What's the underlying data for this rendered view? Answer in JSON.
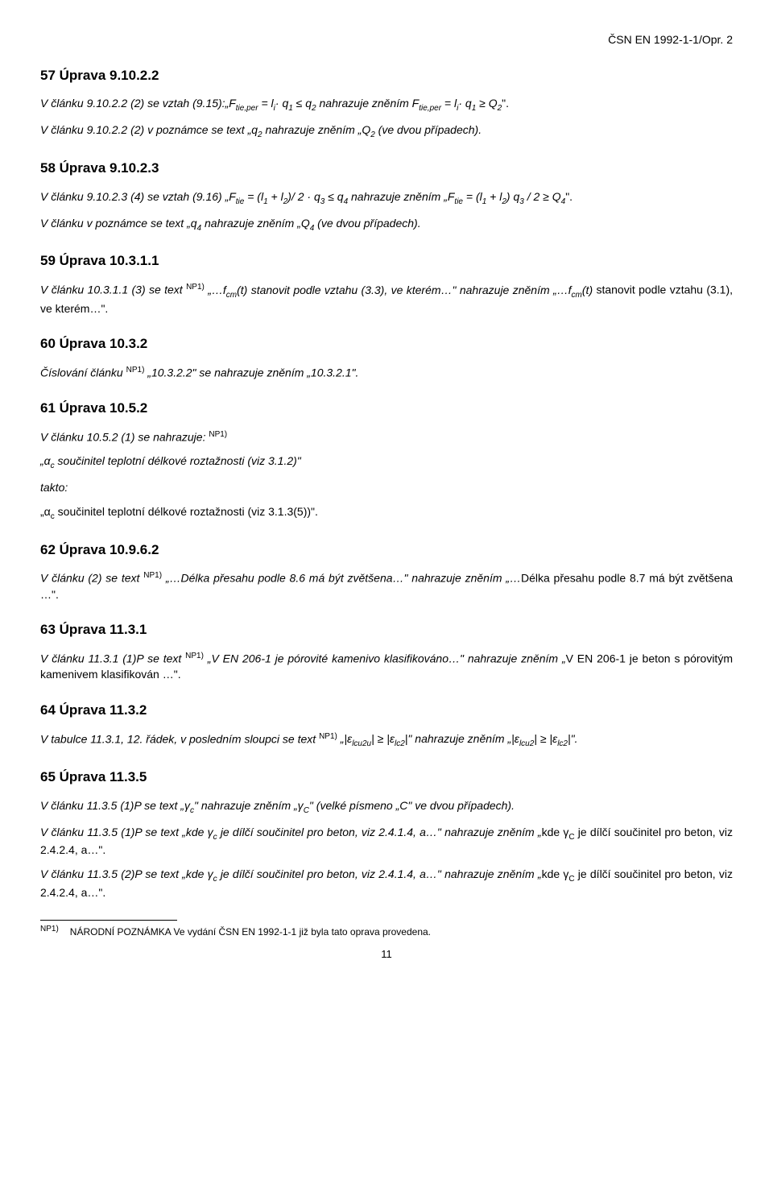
{
  "header": {
    "doc_ref": "ČSN EN 1992-1-1/Opr. 2"
  },
  "s57": {
    "heading": "57   Úprava 9.10.2.2",
    "p1_a": "V článku 9.10.2.2 (2) se vztah (9.15):„F",
    "p1_b": " = l",
    "p1_c": "· q",
    "p1_d": " ≤ q",
    "p1_e": " nahrazuje zněním F",
    "p1_f": " = l",
    "p1_g": "·  q",
    "p1_h": " ≥ Q",
    "p1_i": "\".",
    "p2_a": "V článku 9.10.2.2 (2) v poznámce se text „q",
    "p2_b": " nahrazuje zněním „Q",
    "p2_c": " (ve dvou případech)."
  },
  "s58": {
    "heading": "58   Úprava 9.10.2.3",
    "p1_a": "V článku 9.10.2.3 (4) se vztah (9.16) „F",
    "p1_b": " = (l",
    "p1_c": " + l",
    "p1_d": ")/ 2 · q",
    "p1_e": " ≤ q",
    "p1_f": " nahrazuje zněním „F",
    "p1_g": " = (l",
    "p1_h": " + l",
    "p1_i": ") q",
    "p1_j": " / 2 ≥ Q",
    "p1_k": "\".",
    "p2_a": "V článku v poznámce se text „q",
    "p2_b": " nahrazuje zněním „Q",
    "p2_c": " (ve dvou případech)."
  },
  "s59": {
    "heading": "59   Úprava 10.3.1.1",
    "p1_a": "V článku 10.3.1.1 (3) se text ",
    "np": "NP1)",
    "p1_b": " „…f",
    "p1_c": "(t) stanovit podle vztahu (3.3), ve kterém…\" nahrazuje zněním „…f",
    "p1_d": "(t)",
    "p1_e": " stanovit podle vztahu (3.1), ve kterém…\"."
  },
  "s60": {
    "heading": "60   Úprava 10.3.2",
    "p1_a": "Číslování článku ",
    "p1_b": " „10.3.2.2\" se nahrazuje zněním „10.3.2.1\"."
  },
  "s61": {
    "heading": "61   Úprava 10.5.2",
    "p1": "V článku 10.5.2 (1) se nahrazuje: ",
    "p2_a": "„α",
    "p2_b": " součinitel teplotní délkové roztažnosti (viz 3.1.2)\"",
    "p3": "takto:",
    "p4_a": "„α",
    "p4_b": " součinitel teplotní délkové roztažnosti (viz 3.1.3(5))\"."
  },
  "s62": {
    "heading": "62   Úprava 10.9.6.2",
    "p1_a": "V článku (2) se text ",
    "p1_b": " „…Délka přesahu podle 8.6 má být zvětšena…\" nahrazuje zněním „…",
    "p1_c": "Délka přesahu podle 8.7 má být zvětšena …\"."
  },
  "s63": {
    "heading": "63   Úprava 11.3.1",
    "p1_a": "V článku 11.3.1 (1)P se text ",
    "p1_b": " „V EN 206-1 je pórovité kamenivo klasifikováno…\" nahrazuje zněním „",
    "p1_c": "V EN 206-1 je beton s pórovitým kamenivem klasifikován …\"."
  },
  "s64": {
    "heading": "64   Úprava 11.3.2",
    "p1_a": "V tabulce 11.3.1, 12. řádek, v posledním sloupci se text ",
    "p1_b": " „|ε",
    "p1_c": "| ≥ |ε",
    "p1_d": "|\" nahrazuje zněním „|ε",
    "p1_e": "| ≥ |ε",
    "p1_f": "|\"."
  },
  "s65": {
    "heading": "65   Úprava 11.3.5",
    "p1_a": "V článku 11.3.5 (1)P se text „γ",
    "p1_b": "\" nahrazuje zněním „γ",
    "p1_c": "\" (velké písmeno „C\" ve dvou případech).",
    "p2_a": "V článku 11.3.5 (1)P se text „kde γ",
    "p2_b": " je dílčí součinitel pro beton, viz 2.4.1.4, a…\" nahrazuje zněním „",
    "p2_c": "kde γ",
    "p2_d": " je dílčí součinitel pro beton, viz 2.4.2.4, a…\".",
    "p3_a": "V článku 11.3.5 (2)P se text „kde γ",
    "p3_b": " je dílčí součinitel pro beton, viz 2.4.1.4, a…\" nahrazuje zněním „",
    "p3_c": "kde γ",
    "p3_d": " je dílčí součinitel pro beton, viz 2.4.2.4, a…\"."
  },
  "footnote": {
    "label": "NP1)",
    "text": "NÁRODNÍ POZNÁMKA   Ve vydání ČSN EN 1992-1-1 již byla tato oprava provedena."
  },
  "page_num": "11"
}
